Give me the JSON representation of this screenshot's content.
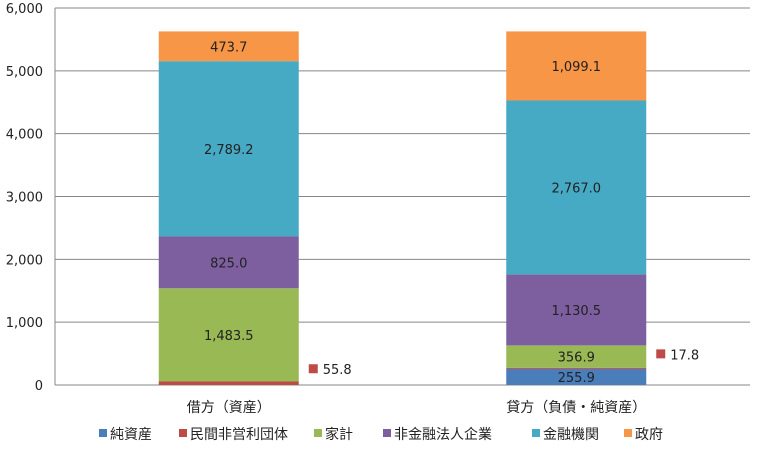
{
  "chart_data": {
    "type": "bar",
    "stacked": true,
    "categories": [
      "借方（資産）",
      "貸方（負債・純資産）"
    ],
    "ylim": [
      0,
      6000
    ],
    "yticks": [
      "0",
      "1,000",
      "2,000",
      "3,000",
      "4,000",
      "5,000",
      "6,000"
    ],
    "ytick_values": [
      0,
      1000,
      2000,
      3000,
      4000,
      5000,
      6000
    ],
    "grid": true,
    "legend_position": "bottom",
    "series": [
      {
        "name": "純資産",
        "color": "#4A7EBB",
        "values": [
          0,
          255.9
        ],
        "labels": [
          "",
          "255.9"
        ]
      },
      {
        "name": "民間非営利団体",
        "color": "#BE4B48",
        "values": [
          55.8,
          17.8
        ],
        "labels": [
          "55.8",
          "17.8"
        ],
        "label_outside": true
      },
      {
        "name": "家計",
        "color": "#98B954",
        "values": [
          1483.5,
          356.9
        ],
        "labels": [
          "1,483.5",
          "356.9"
        ]
      },
      {
        "name": "非金融法人企業",
        "color": "#7D5FA0",
        "values": [
          825.0,
          1130.5
        ],
        "labels": [
          "825.0",
          "1,130.5"
        ]
      },
      {
        "name": "金融機関",
        "color": "#46AAC5",
        "values": [
          2789.2,
          2767.0
        ],
        "labels": [
          "2,789.2",
          "2,767.0"
        ]
      },
      {
        "name": "政府",
        "color": "#F79646",
        "values": [
          473.7,
          1099.1
        ],
        "labels": [
          "473.7",
          "1,099.1"
        ]
      }
    ]
  }
}
